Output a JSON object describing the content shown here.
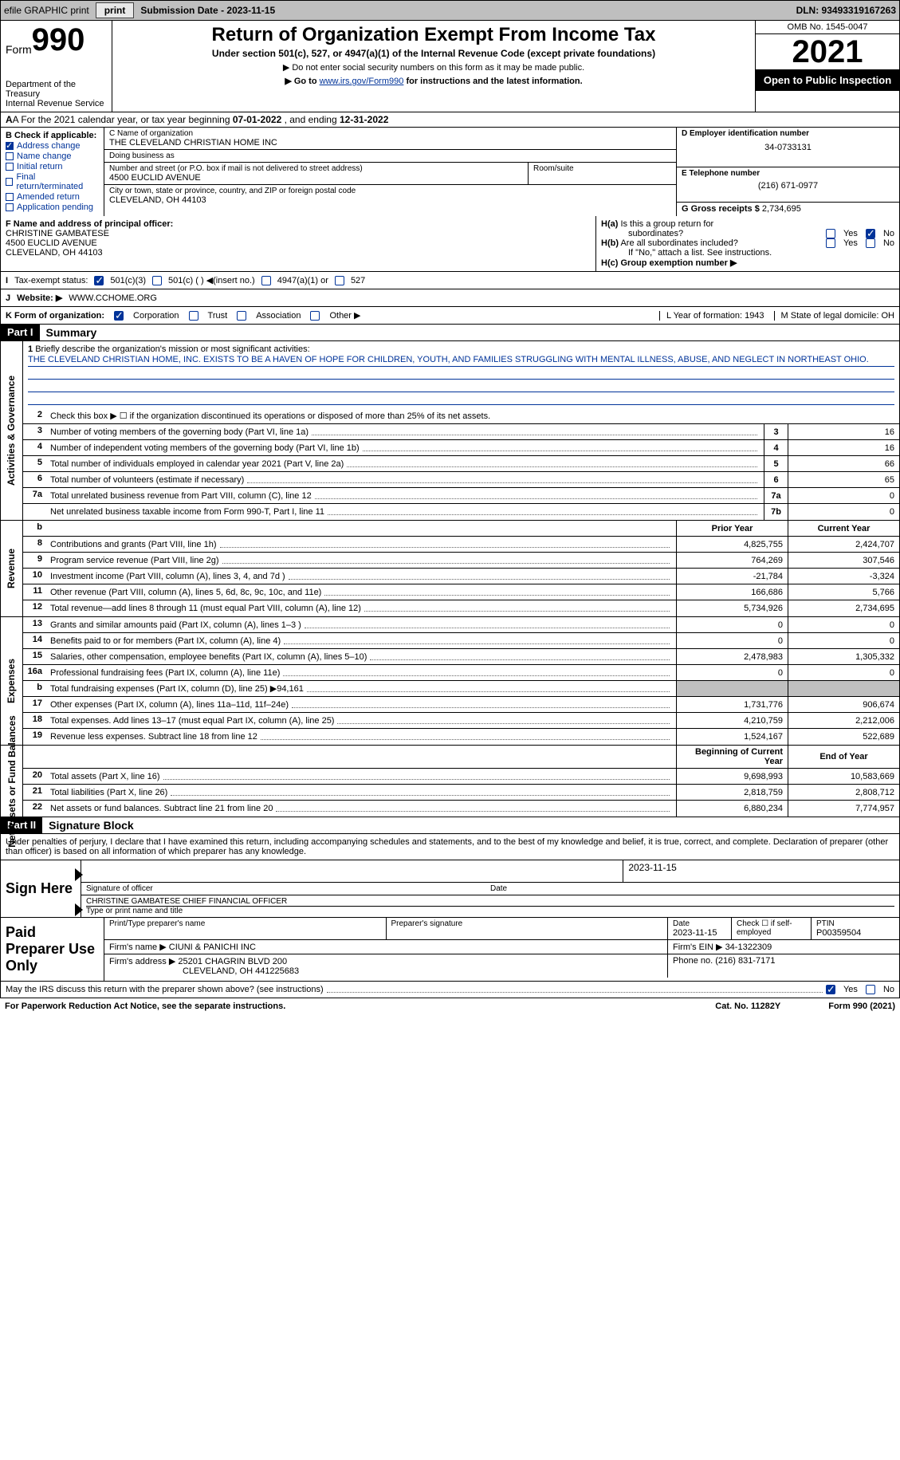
{
  "top": {
    "efile": "efile GRAPHIC print",
    "sub_label": "Submission Date - 2023-11-15",
    "dln": "DLN: 93493319167263"
  },
  "header": {
    "form_label": "Form",
    "form_num": "990",
    "title": "Return of Organization Exempt From Income Tax",
    "subtitle": "Under section 501(c), 527, or 4947(a)(1) of the Internal Revenue Code (except private foundations)",
    "note1": "▶ Do not enter social security numbers on this form as it may be made public.",
    "note2_pre": "▶ Go to ",
    "note2_link": "www.irs.gov/Form990",
    "note2_post": " for instructions and the latest information.",
    "dept": "Department of the Treasury\nInternal Revenue Service",
    "omb": "OMB No. 1545-0047",
    "year": "2021",
    "open": "Open to Public Inspection"
  },
  "barA": {
    "text_pre": "A For the 2021 calendar year, or tax year beginning ",
    "begin": "07-01-2022",
    "text_mid": " , and ending ",
    "end": "12-31-2022"
  },
  "boxB": {
    "title": "B Check if applicable:",
    "items": [
      {
        "label": "Address change",
        "checked": true
      },
      {
        "label": "Name change",
        "checked": false
      },
      {
        "label": "Initial return",
        "checked": false
      },
      {
        "label": "Final return/terminated",
        "checked": false
      },
      {
        "label": "Amended return",
        "checked": false
      },
      {
        "label": "Application pending",
        "checked": false
      }
    ]
  },
  "boxC": {
    "name_label": "C Name of organization",
    "name": "THE CLEVELAND CHRISTIAN HOME INC",
    "dba_label": "Doing business as",
    "dba": "",
    "addr_label": "Number and street (or P.O. box if mail is not delivered to street address)",
    "room_label": "Room/suite",
    "addr": "4500 EUCLID AVENUE",
    "city_label": "City or town, state or province, country, and ZIP or foreign postal code",
    "city": "CLEVELAND, OH  44103"
  },
  "boxD": {
    "label": "D Employer identification number",
    "val": "34-0733131"
  },
  "boxE": {
    "label": "E Telephone number",
    "val": "(216) 671-0977"
  },
  "boxG": {
    "label": "G Gross receipts $",
    "val": "2,734,695"
  },
  "boxF": {
    "label": "F Name and address of principal officer:",
    "name": "CHRISTINE GAMBATESE",
    "addr1": "4500 EUCLID AVENUE",
    "addr2": "CLEVELAND, OH  44103"
  },
  "boxH": {
    "a_label": "H(a) Is this a group return for subordinates?",
    "a_yes": "Yes",
    "a_no": "No",
    "a_checked": "No",
    "b_label": "H(b) Are all subordinates included?",
    "b_note": "If \"No,\" attach a list. See instructions.",
    "c_label": "H(c) Group exemption number ▶"
  },
  "lineI": {
    "label": "I",
    "text": "Tax-exempt status:",
    "opts": [
      "501(c)(3)",
      "501(c) (  ) ◀(insert no.)",
      "4947(a)(1) or",
      "527"
    ],
    "checked": 0
  },
  "lineJ": {
    "label": "J",
    "text": "Website: ▶",
    "val": "WWW.CCHOME.ORG"
  },
  "lineK": {
    "label": "K Form of organization:",
    "opts": [
      "Corporation",
      "Trust",
      "Association",
      "Other ▶"
    ],
    "checked": 0,
    "L": "L Year of formation: 1943",
    "M": "M State of legal domicile: OH"
  },
  "part1": {
    "hdr": "Part I",
    "title": "Summary"
  },
  "summary": {
    "q1_label": "1",
    "q1": "Briefly describe the organization's mission or most significant activities:",
    "mission": "THE CLEVELAND CHRISTIAN HOME, INC. EXISTS TO BE A HAVEN OF HOPE FOR CHILDREN, YOUTH, AND FAMILIES STRUGGLING WITH MENTAL ILLNESS, ABUSE, AND NEGLECT IN NORTHEAST OHIO.",
    "q2": "Check this box ▶ ☐ if the organization discontinued its operations or disposed of more than 25% of its net assets.",
    "rows_ag": [
      {
        "n": "3",
        "t": "Number of voting members of the governing body (Part VI, line 1a)",
        "box": "3",
        "v": "16"
      },
      {
        "n": "4",
        "t": "Number of independent voting members of the governing body (Part VI, line 1b)",
        "box": "4",
        "v": "16"
      },
      {
        "n": "5",
        "t": "Total number of individuals employed in calendar year 2021 (Part V, line 2a)",
        "box": "5",
        "v": "66"
      },
      {
        "n": "6",
        "t": "Total number of volunteers (estimate if necessary)",
        "box": "6",
        "v": "65"
      },
      {
        "n": "7a",
        "t": "Total unrelated business revenue from Part VIII, column (C), line 12",
        "box": "7a",
        "v": "0"
      },
      {
        "n": "",
        "t": "Net unrelated business taxable income from Form 990-T, Part I, line 11",
        "box": "7b",
        "v": "0"
      }
    ],
    "hdr_b": "b",
    "hdr_prior": "Prior Year",
    "hdr_curr": "Current Year",
    "rows_rev": [
      {
        "n": "8",
        "t": "Contributions and grants (Part VIII, line 1h)",
        "p": "4,825,755",
        "c": "2,424,707"
      },
      {
        "n": "9",
        "t": "Program service revenue (Part VIII, line 2g)",
        "p": "764,269",
        "c": "307,546"
      },
      {
        "n": "10",
        "t": "Investment income (Part VIII, column (A), lines 3, 4, and 7d )",
        "p": "-21,784",
        "c": "-3,324"
      },
      {
        "n": "11",
        "t": "Other revenue (Part VIII, column (A), lines 5, 6d, 8c, 9c, 10c, and 11e)",
        "p": "166,686",
        "c": "5,766"
      },
      {
        "n": "12",
        "t": "Total revenue—add lines 8 through 11 (must equal Part VIII, column (A), line 12)",
        "p": "5,734,926",
        "c": "2,734,695"
      }
    ],
    "rows_exp": [
      {
        "n": "13",
        "t": "Grants and similar amounts paid (Part IX, column (A), lines 1–3 )",
        "p": "0",
        "c": "0"
      },
      {
        "n": "14",
        "t": "Benefits paid to or for members (Part IX, column (A), line 4)",
        "p": "0",
        "c": "0"
      },
      {
        "n": "15",
        "t": "Salaries, other compensation, employee benefits (Part IX, column (A), lines 5–10)",
        "p": "2,478,983",
        "c": "1,305,332"
      },
      {
        "n": "16a",
        "t": "Professional fundraising fees (Part IX, column (A), line 11e)",
        "p": "0",
        "c": "0"
      },
      {
        "n": "b",
        "t": "Total fundraising expenses (Part IX, column (D), line 25) ▶94,161",
        "p": "",
        "c": "",
        "shade": true
      },
      {
        "n": "17",
        "t": "Other expenses (Part IX, column (A), lines 11a–11d, 11f–24e)",
        "p": "1,731,776",
        "c": "906,674"
      },
      {
        "n": "18",
        "t": "Total expenses. Add lines 13–17 (must equal Part IX, column (A), line 25)",
        "p": "4,210,759",
        "c": "2,212,006"
      },
      {
        "n": "19",
        "t": "Revenue less expenses. Subtract line 18 from line 12",
        "p": "1,524,167",
        "c": "522,689"
      }
    ],
    "hdr_begin": "Beginning of Current Year",
    "hdr_end": "End of Year",
    "rows_net": [
      {
        "n": "20",
        "t": "Total assets (Part X, line 16)",
        "p": "9,698,993",
        "c": "10,583,669"
      },
      {
        "n": "21",
        "t": "Total liabilities (Part X, line 26)",
        "p": "2,818,759",
        "c": "2,808,712"
      },
      {
        "n": "22",
        "t": "Net assets or fund balances. Subtract line 21 from line 20",
        "p": "6,880,234",
        "c": "7,774,957"
      }
    ],
    "side_ag": "Activities & Governance",
    "side_rev": "Revenue",
    "side_exp": "Expenses",
    "side_net": "Net Assets or Fund Balances"
  },
  "part2": {
    "hdr": "Part II",
    "title": "Signature Block"
  },
  "sig": {
    "decl": "Under penalties of perjury, I declare that I have examined this return, including accompanying schedules and statements, and to the best of my knowledge and belief, it is true, correct, and complete. Declaration of preparer (other than officer) is based on all information of which preparer has any knowledge.",
    "sign_here": "Sign Here",
    "sig_off": "Signature of officer",
    "date": "Date",
    "date_val": "2023-11-15",
    "name": "CHRISTINE GAMBATESE  CHIEF FINANCIAL OFFICER",
    "name_lbl": "Type or print name and title"
  },
  "prep": {
    "title": "Paid Preparer Use Only",
    "h1": "Print/Type preparer's name",
    "h2": "Preparer's signature",
    "h3": "Date",
    "h3v": "2023-11-15",
    "h4": "Check ☐ if self-employed",
    "h5": "PTIN",
    "h5v": "P00359504",
    "firm_lbl": "Firm's name   ▶",
    "firm": "CIUNI & PANICHI INC",
    "ein_lbl": "Firm's EIN ▶",
    "ein": "34-1322309",
    "addr_lbl": "Firm's address ▶",
    "addr": "25201 CHAGRIN BLVD 200",
    "addr2": "CLEVELAND, OH  441225683",
    "phone_lbl": "Phone no.",
    "phone": "(216) 831-7171"
  },
  "foot": {
    "q": "May the IRS discuss this return with the preparer shown above? (see instructions)",
    "yes": "Yes",
    "no": "No",
    "l": "For Paperwork Reduction Act Notice, see the separate instructions.",
    "m": "Cat. No. 11282Y",
    "r": "Form 990 (2021)"
  }
}
